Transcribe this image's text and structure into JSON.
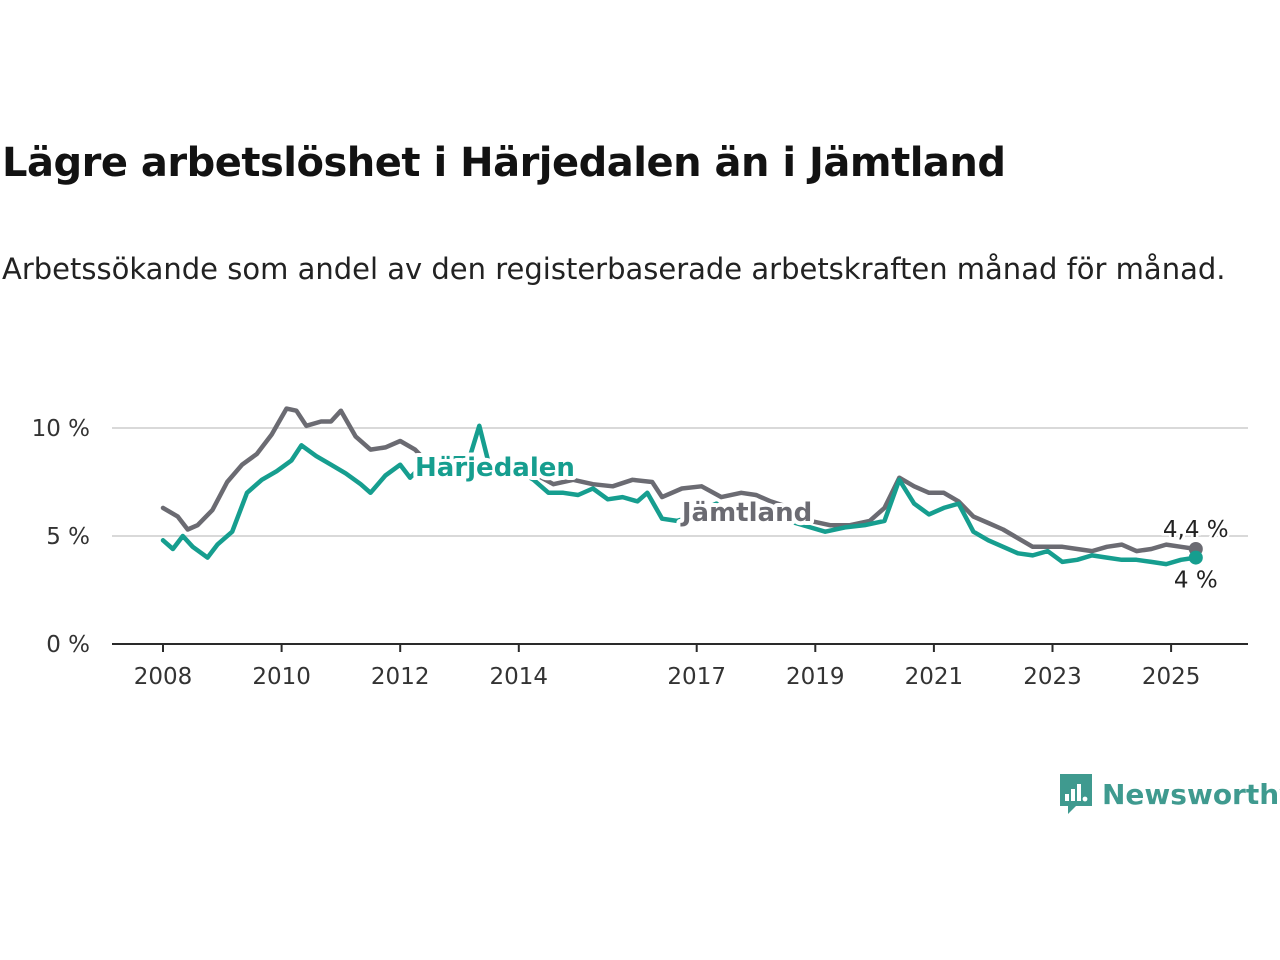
{
  "title": "Lägre arbetslöshet i Härjedalen än i Jämtland",
  "subtitle": "Arbetssökande som andel av den registerbaserade arbetskraften månad för månad.",
  "brand": {
    "name": "Newsworthy",
    "color": "#3f9a8f",
    "icon": "bar-chart-speech-bubble-icon"
  },
  "chart_data": {
    "type": "line",
    "x_tick_labels": [
      "2008",
      "2010",
      "2012",
      "2014",
      "2017",
      "2019",
      "2021",
      "2023",
      "2025"
    ],
    "y_ticks": [
      0,
      5,
      10
    ],
    "y_tick_labels": [
      "0 %",
      "5 %",
      "10 %"
    ],
    "ylim": [
      0,
      10.5
    ],
    "grid": "horizontal",
    "series": [
      {
        "name": "Jämtland",
        "color": "#6b6b72",
        "end_label": "4,4 %",
        "points": [
          [
            "2008-01",
            6.3
          ],
          [
            "2008-04",
            5.9
          ],
          [
            "2008-06",
            5.3
          ],
          [
            "2008-08",
            5.5
          ],
          [
            "2008-11",
            6.2
          ],
          [
            "2009-02",
            7.5
          ],
          [
            "2009-05",
            8.3
          ],
          [
            "2009-08",
            8.8
          ],
          [
            "2009-11",
            9.7
          ],
          [
            "2010-02",
            10.9
          ],
          [
            "2010-04",
            10.8
          ],
          [
            "2010-06",
            10.1
          ],
          [
            "2010-09",
            10.3
          ],
          [
            "2010-11",
            10.3
          ],
          [
            "2011-01",
            10.8
          ],
          [
            "2011-04",
            9.6
          ],
          [
            "2011-07",
            9.0
          ],
          [
            "2011-10",
            9.1
          ],
          [
            "2012-01",
            9.4
          ],
          [
            "2012-04",
            9.0
          ],
          [
            "2012-07",
            8.3
          ],
          [
            "2012-10",
            8.1
          ],
          [
            "2013-01",
            8.6
          ],
          [
            "2013-04",
            8.4
          ],
          [
            "2013-08",
            8.2
          ],
          [
            "2013-12",
            8.1
          ],
          [
            "2014-04",
            7.9
          ],
          [
            "2014-08",
            7.4
          ],
          [
            "2014-12",
            7.6
          ],
          [
            "2015-04",
            7.4
          ],
          [
            "2015-08",
            7.3
          ],
          [
            "2015-12",
            7.6
          ],
          [
            "2016-04",
            7.5
          ],
          [
            "2016-06",
            6.8
          ],
          [
            "2016-10",
            7.2
          ],
          [
            "2017-02",
            7.3
          ],
          [
            "2017-06",
            6.8
          ],
          [
            "2017-10",
            7.0
          ],
          [
            "2018-01",
            6.9
          ],
          [
            "2018-04",
            6.6
          ],
          [
            "2018-08",
            6.3
          ],
          [
            "2018-12",
            5.7
          ],
          [
            "2019-04",
            5.5
          ],
          [
            "2019-08",
            5.5
          ],
          [
            "2019-12",
            5.7
          ],
          [
            "2020-03",
            6.3
          ],
          [
            "2020-06",
            7.7
          ],
          [
            "2020-09",
            7.3
          ],
          [
            "2020-12",
            7.0
          ],
          [
            "2021-03",
            7.0
          ],
          [
            "2021-06",
            6.6
          ],
          [
            "2021-09",
            5.9
          ],
          [
            "2021-12",
            5.6
          ],
          [
            "2022-03",
            5.3
          ],
          [
            "2022-06",
            4.9
          ],
          [
            "2022-09",
            4.5
          ],
          [
            "2022-12",
            4.5
          ],
          [
            "2023-03",
            4.5
          ],
          [
            "2023-06",
            4.4
          ],
          [
            "2023-09",
            4.3
          ],
          [
            "2023-12",
            4.5
          ],
          [
            "2024-03",
            4.6
          ],
          [
            "2024-06",
            4.3
          ],
          [
            "2024-09",
            4.4
          ],
          [
            "2024-12",
            4.6
          ],
          [
            "2025-03",
            4.5
          ],
          [
            "2025-06",
            4.4
          ]
        ]
      },
      {
        "name": "Härjedalen",
        "color": "#169e8f",
        "end_label": "4 %",
        "points": [
          [
            "2008-01",
            4.8
          ],
          [
            "2008-03",
            4.4
          ],
          [
            "2008-05",
            5.0
          ],
          [
            "2008-07",
            4.5
          ],
          [
            "2008-10",
            4.0
          ],
          [
            "2008-12",
            4.6
          ],
          [
            "2009-03",
            5.2
          ],
          [
            "2009-06",
            7.0
          ],
          [
            "2009-09",
            7.6
          ],
          [
            "2009-12",
            8.0
          ],
          [
            "2010-03",
            8.5
          ],
          [
            "2010-05",
            9.2
          ],
          [
            "2010-08",
            8.7
          ],
          [
            "2010-11",
            8.3
          ],
          [
            "2011-02",
            7.9
          ],
          [
            "2011-05",
            7.4
          ],
          [
            "2011-07",
            7.0
          ],
          [
            "2011-10",
            7.8
          ],
          [
            "2012-01",
            8.3
          ],
          [
            "2012-03",
            7.7
          ],
          [
            "2012-06",
            8.4
          ],
          [
            "2012-09",
            8.1
          ],
          [
            "2012-12",
            8.6
          ],
          [
            "2013-03",
            8.6
          ],
          [
            "2013-05",
            10.1
          ],
          [
            "2013-07",
            8.3
          ],
          [
            "2013-10",
            7.8
          ],
          [
            "2014-01",
            8.0
          ],
          [
            "2014-04",
            7.6
          ],
          [
            "2014-07",
            7.0
          ],
          [
            "2014-10",
            7.0
          ],
          [
            "2015-01",
            6.9
          ],
          [
            "2015-04",
            7.2
          ],
          [
            "2015-07",
            6.7
          ],
          [
            "2015-10",
            6.8
          ],
          [
            "2016-01",
            6.6
          ],
          [
            "2016-03",
            7.0
          ],
          [
            "2016-06",
            5.8
          ],
          [
            "2016-09",
            5.7
          ],
          [
            "2016-12",
            5.9
          ],
          [
            "2017-03",
            6.3
          ],
          [
            "2017-05",
            6.5
          ],
          [
            "2017-08",
            5.9
          ],
          [
            "2017-11",
            6.4
          ],
          [
            "2018-02",
            6.3
          ],
          [
            "2018-06",
            5.9
          ],
          [
            "2018-09",
            5.6
          ],
          [
            "2018-12",
            5.4
          ],
          [
            "2019-03",
            5.2
          ],
          [
            "2019-07",
            5.4
          ],
          [
            "2019-11",
            5.5
          ],
          [
            "2020-03",
            5.7
          ],
          [
            "2020-06",
            7.6
          ],
          [
            "2020-09",
            6.5
          ],
          [
            "2020-12",
            6.0
          ],
          [
            "2021-03",
            6.3
          ],
          [
            "2021-06",
            6.5
          ],
          [
            "2021-09",
            5.2
          ],
          [
            "2021-12",
            4.8
          ],
          [
            "2022-03",
            4.5
          ],
          [
            "2022-06",
            4.2
          ],
          [
            "2022-09",
            4.1
          ],
          [
            "2022-12",
            4.3
          ],
          [
            "2023-03",
            3.8
          ],
          [
            "2023-06",
            3.9
          ],
          [
            "2023-09",
            4.1
          ],
          [
            "2023-12",
            4.0
          ],
          [
            "2024-03",
            3.9
          ],
          [
            "2024-06",
            3.9
          ],
          [
            "2024-09",
            3.8
          ],
          [
            "2024-12",
            3.7
          ],
          [
            "2025-03",
            3.9
          ],
          [
            "2025-06",
            4.0
          ]
        ]
      }
    ]
  }
}
